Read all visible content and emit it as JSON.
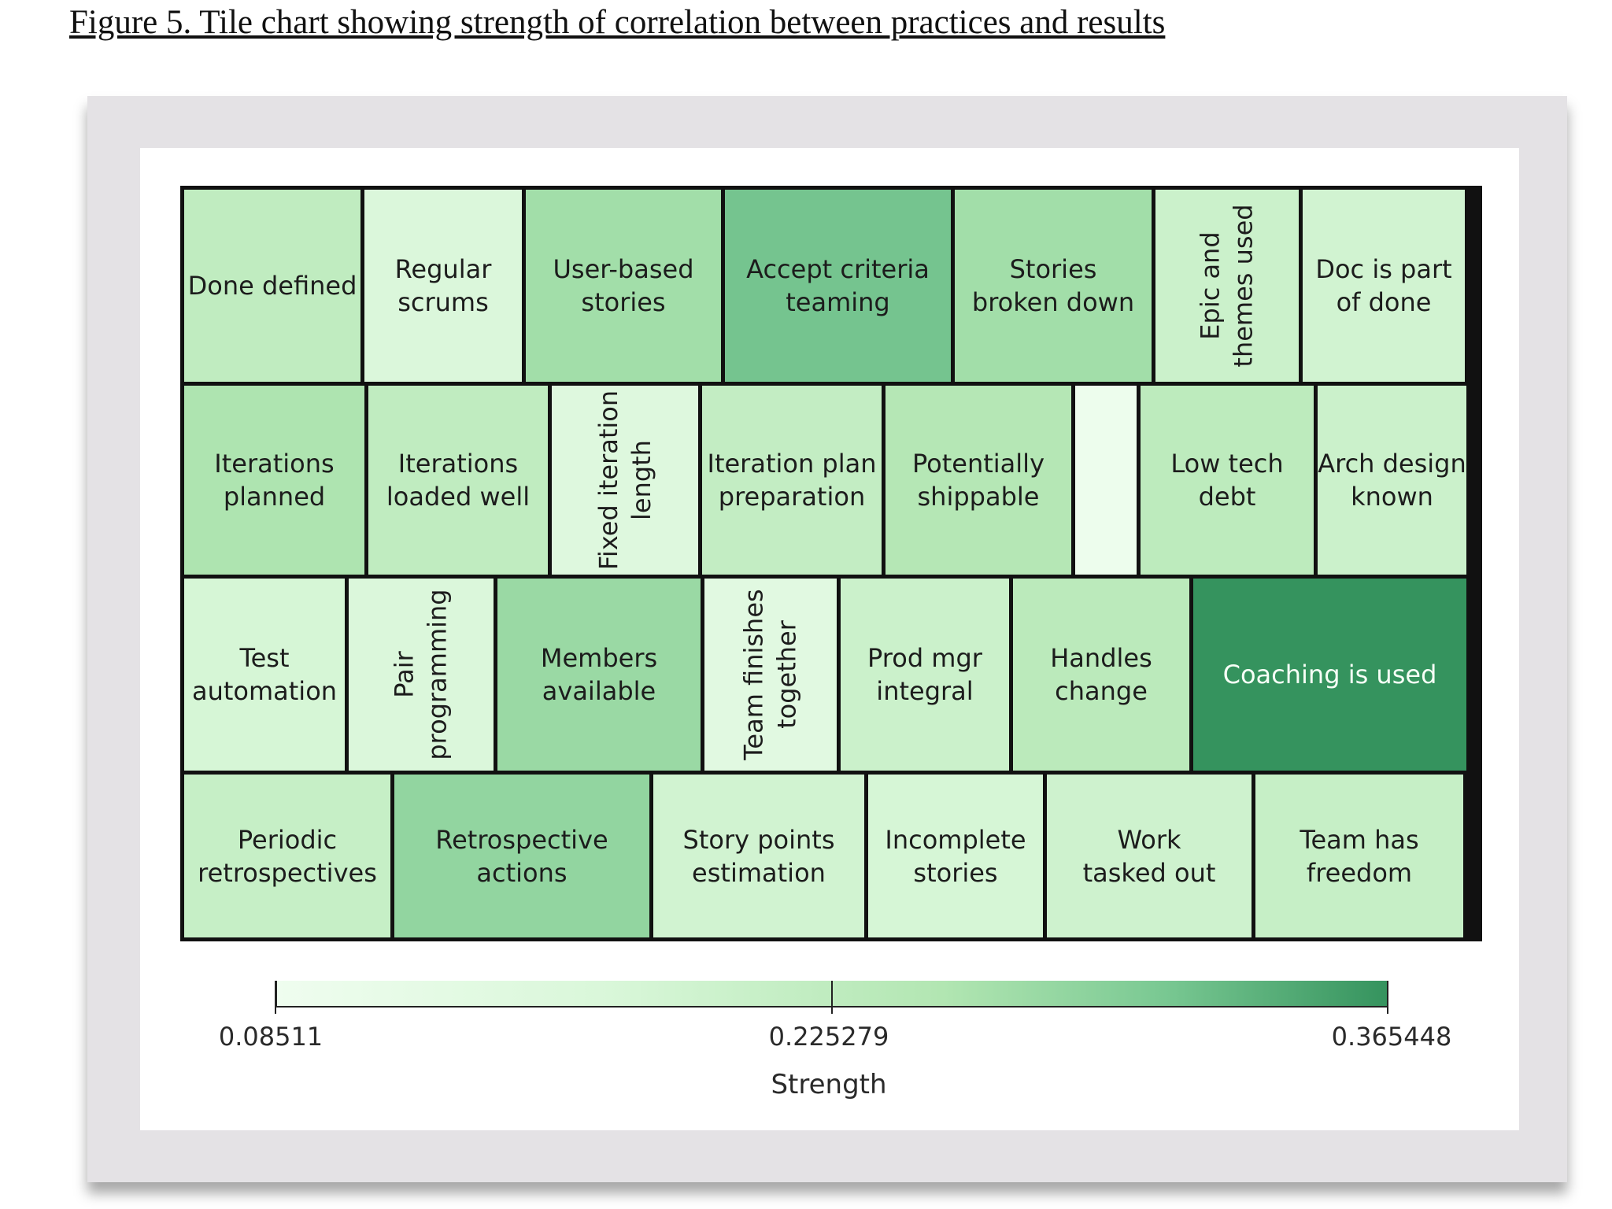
{
  "figure": {
    "caption": "Figure 5. Tile chart showing strength of correlation between practices and results"
  },
  "chart_data": {
    "type": "heatmap",
    "rows": [
      [
        {
          "label": "Done defined",
          "value": 0.2
        },
        {
          "label": "Regular scrums",
          "value": 0.15
        },
        {
          "label": "User-based stories",
          "value": 0.245
        },
        {
          "label": "Accept criteria teaming",
          "value": 0.3
        },
        {
          "label": "Stories broken down",
          "value": 0.245
        },
        {
          "label": "Epic and themes used",
          "value": 0.18
        },
        {
          "label": "Doc is part of done",
          "value": 0.17
        }
      ],
      [
        {
          "label": "Iterations planned",
          "value": 0.23
        },
        {
          "label": "Iterations loaded well",
          "value": 0.2
        },
        {
          "label": "Fixed iteration length",
          "value": 0.14
        },
        {
          "label": "Iteration plan preparation",
          "value": 0.195
        },
        {
          "label": "Potentially shippable",
          "value": 0.22
        },
        {
          "label": "",
          "value": 0.09
        },
        {
          "label": "Low tech debt",
          "value": 0.205
        },
        {
          "label": "Arch design known",
          "value": 0.18
        }
      ],
      [
        {
          "label": "Test automation",
          "value": 0.16
        },
        {
          "label": "Pair programming",
          "value": 0.15
        },
        {
          "label": "Members available",
          "value": 0.255
        },
        {
          "label": "Team finishes together",
          "value": 0.13
        },
        {
          "label": "Prod mgr integral",
          "value": 0.18
        },
        {
          "label": "Handles change",
          "value": 0.21
        },
        {
          "label": "Coaching is used",
          "value": 0.365448
        }
      ],
      [
        {
          "label": "Periodic retrospectives",
          "value": 0.19
        },
        {
          "label": "Retrospective actions",
          "value": 0.265
        },
        {
          "label": "Story points estimation",
          "value": 0.17
        },
        {
          "label": "Incomplete stories",
          "value": 0.16
        },
        {
          "label": "Work tasked out",
          "value": 0.175
        },
        {
          "label": "Team has freedom",
          "value": 0.19
        }
      ]
    ],
    "color_scale": {
      "min": 0.08511,
      "mid": 0.225279,
      "max": 0.365448,
      "tick_labels": [
        "0.08511",
        "0.225279",
        "0.365448"
      ],
      "title": "Strength",
      "colors": [
        "#effdef",
        "#d9f7d9",
        "#b2e6b2",
        "#79c892",
        "#35935e"
      ]
    }
  }
}
